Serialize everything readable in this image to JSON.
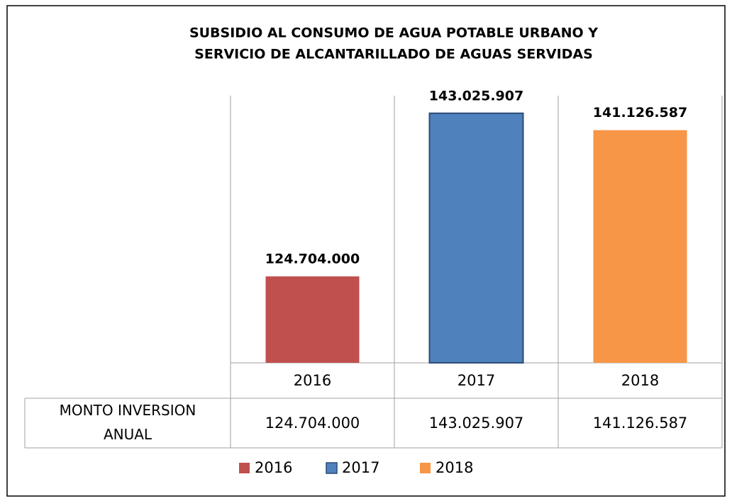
{
  "chart_data": {
    "type": "bar",
    "title": [
      "SUBSIDIO  AL CONSUMO   DE AGUA POTABLE URBANO Y",
      "SERVICIO DE  ALCANTARILLADO DE AGUAS SERVIDAS"
    ],
    "categories": [
      "2016",
      "2017",
      "2018"
    ],
    "series": [
      {
        "name": "MONTO INVERSION ANUAL",
        "values": [
          124704000,
          143025907,
          141126587
        ],
        "value_labels": [
          "124.704.000",
          "143.025.907",
          "141.126.587"
        ],
        "colors": [
          "#c0504d",
          "#4f81bd",
          "#f79646"
        ]
      }
    ],
    "ylim": [
      115000000,
      145000000
    ],
    "legend": "bottom"
  }
}
